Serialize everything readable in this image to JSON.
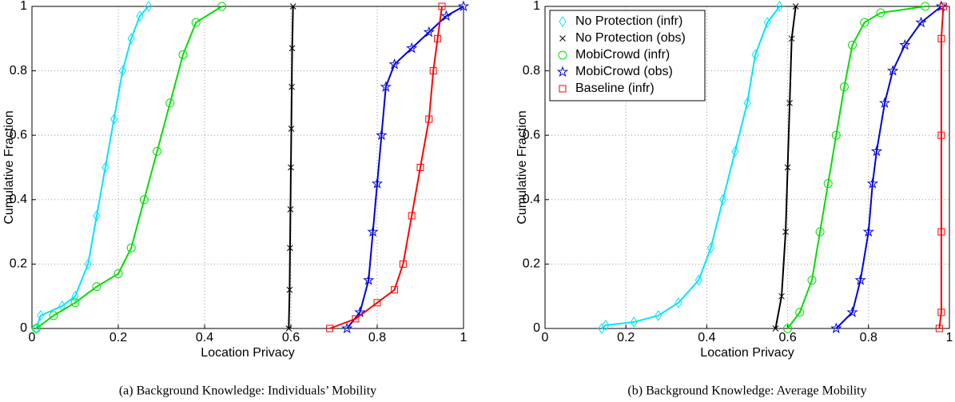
{
  "chart_data": [
    {
      "type": "line",
      "xlabel": "Location Privacy",
      "ylabel": "Cumulative Fraction",
      "caption": "(a) Background Knowledge: Individuals’ Mobility",
      "xlim": [
        0,
        1
      ],
      "ylim": [
        0,
        1
      ],
      "xticks": [
        0,
        0.2,
        0.4,
        0.6,
        0.8,
        1
      ],
      "yticks": [
        0,
        0.2,
        0.4,
        0.6,
        0.8,
        1
      ],
      "grid": true,
      "series": [
        {
          "color": "#00e5ff",
          "marker": "diamond",
          "x": [
            0.01,
            0.02,
            0.07,
            0.1,
            0.13,
            0.15,
            0.17,
            0.19,
            0.21,
            0.23,
            0.25,
            0.27
          ],
          "values": [
            0,
            0.04,
            0.07,
            0.1,
            0.2,
            0.35,
            0.5,
            0.65,
            0.8,
            0.9,
            0.97,
            1
          ]
        },
        {
          "color": "#00e000",
          "marker": "circle",
          "x": [
            0.01,
            0.05,
            0.1,
            0.15,
            0.2,
            0.23,
            0.26,
            0.29,
            0.32,
            0.35,
            0.38,
            0.44
          ],
          "values": [
            0,
            0.04,
            0.08,
            0.13,
            0.17,
            0.25,
            0.4,
            0.55,
            0.7,
            0.85,
            0.95,
            1
          ]
        },
        {
          "color": "#000000",
          "marker": "x",
          "x": [
            0.595,
            0.597,
            0.598,
            0.599,
            0.6,
            0.601,
            0.602,
            0.603,
            0.605
          ],
          "values": [
            0,
            0.12,
            0.25,
            0.37,
            0.5,
            0.62,
            0.75,
            0.87,
            1
          ]
        },
        {
          "color": "#0000dd",
          "marker": "star",
          "x": [
            0.73,
            0.76,
            0.78,
            0.79,
            0.8,
            0.81,
            0.82,
            0.84,
            0.88,
            0.92,
            0.96,
            1
          ],
          "values": [
            0,
            0.05,
            0.15,
            0.3,
            0.45,
            0.6,
            0.75,
            0.82,
            0.87,
            0.92,
            0.97,
            1
          ]
        },
        {
          "color": "#ff0000",
          "marker": "square",
          "x": [
            0.69,
            0.75,
            0.8,
            0.84,
            0.86,
            0.88,
            0.9,
            0.92,
            0.93,
            0.94,
            0.95
          ],
          "values": [
            0,
            0.03,
            0.08,
            0.12,
            0.2,
            0.35,
            0.5,
            0.65,
            0.8,
            0.9,
            1
          ]
        }
      ]
    },
    {
      "type": "line",
      "xlabel": "Location Privacy",
      "ylabel": "Cumulative Fraction",
      "caption": "(b) Background Knowledge: Average Mobility",
      "xlim": [
        0,
        1
      ],
      "ylim": [
        0,
        1
      ],
      "xticks": [
        0,
        0.2,
        0.4,
        0.6,
        0.8,
        1
      ],
      "yticks": [
        0,
        0.2,
        0.4,
        0.6,
        0.8,
        1
      ],
      "grid": true,
      "legend": "upper-left",
      "series": [
        {
          "name": "No Protection (infr)",
          "color": "#00e5ff",
          "marker": "diamond",
          "x": [
            0.14,
            0.15,
            0.22,
            0.28,
            0.33,
            0.38,
            0.41,
            0.44,
            0.47,
            0.5,
            0.52,
            0.55,
            0.58
          ],
          "values": [
            0,
            0.01,
            0.02,
            0.04,
            0.08,
            0.15,
            0.25,
            0.4,
            0.55,
            0.7,
            0.85,
            0.95,
            1
          ]
        },
        {
          "name": "No Protection (obs)",
          "color": "#000000",
          "marker": "x",
          "x": [
            0.57,
            0.585,
            0.595,
            0.6,
            0.605,
            0.61,
            0.62
          ],
          "values": [
            0,
            0.1,
            0.3,
            0.5,
            0.7,
            0.9,
            1
          ]
        },
        {
          "name": "MobiCrowd (infr)",
          "color": "#00e000",
          "marker": "circle",
          "x": [
            0.6,
            0.63,
            0.66,
            0.68,
            0.7,
            0.72,
            0.74,
            0.76,
            0.79,
            0.83,
            0.94
          ],
          "values": [
            0,
            0.05,
            0.15,
            0.3,
            0.45,
            0.6,
            0.75,
            0.88,
            0.95,
            0.98,
            1
          ]
        },
        {
          "name": "MobiCrowd (obs)",
          "color": "#0000dd",
          "marker": "star",
          "x": [
            0.72,
            0.76,
            0.78,
            0.8,
            0.81,
            0.82,
            0.84,
            0.86,
            0.89,
            0.93,
            0.98
          ],
          "values": [
            0,
            0.05,
            0.15,
            0.3,
            0.45,
            0.55,
            0.7,
            0.8,
            0.88,
            0.95,
            1
          ]
        },
        {
          "name": "Baseline (infr)",
          "color": "#ff0000",
          "marker": "square",
          "x": [
            0.975,
            0.98,
            0.98,
            0.98,
            0.98,
            0.985
          ],
          "values": [
            0,
            0.05,
            0.3,
            0.6,
            0.9,
            1
          ]
        }
      ]
    }
  ]
}
